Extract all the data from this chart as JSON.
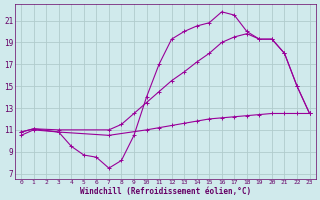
{
  "background_color": "#d0eaec",
  "grid_color": "#b0cccc",
  "line_color": "#990099",
  "xlabel": "Windchill (Refroidissement éolien,°C)",
  "xlabel_color": "#660066",
  "tick_color": "#660066",
  "xlim": [
    -0.5,
    23.5
  ],
  "ylim": [
    6.5,
    22.5
  ],
  "yticks": [
    7,
    9,
    11,
    13,
    15,
    17,
    19,
    21
  ],
  "xticks": [
    0,
    1,
    2,
    3,
    4,
    5,
    6,
    7,
    8,
    9,
    10,
    11,
    12,
    13,
    14,
    15,
    16,
    17,
    18,
    19,
    20,
    21,
    22,
    23
  ],
  "curve1_x": [
    0,
    1,
    3,
    4,
    5,
    6,
    7,
    8,
    9,
    10,
    11,
    12,
    13,
    14,
    15,
    16,
    17,
    18,
    19,
    20,
    21,
    22,
    23
  ],
  "curve1_y": [
    10.8,
    11.1,
    10.8,
    9.5,
    8.7,
    8.5,
    7.5,
    8.2,
    10.5,
    14.0,
    17.0,
    19.3,
    20.0,
    20.5,
    20.8,
    21.8,
    21.5,
    20.0,
    19.3,
    19.3,
    18.0,
    15.0,
    12.5
  ],
  "curve2_x": [
    0,
    1,
    3,
    7,
    8,
    9,
    10,
    11,
    12,
    13,
    14,
    15,
    16,
    17,
    18,
    19,
    20,
    21,
    22,
    23
  ],
  "curve2_y": [
    10.8,
    11.1,
    11.0,
    11.0,
    11.5,
    12.5,
    13.5,
    14.5,
    15.5,
    16.3,
    17.2,
    18.0,
    19.0,
    19.5,
    19.8,
    19.3,
    19.3,
    18.0,
    15.0,
    12.5
  ],
  "curve3_x": [
    0,
    1,
    3,
    7,
    10,
    11,
    12,
    13,
    14,
    15,
    16,
    17,
    18,
    19,
    20,
    21,
    22,
    23
  ],
  "curve3_y": [
    10.5,
    11.0,
    10.8,
    10.5,
    11.0,
    11.2,
    11.4,
    11.6,
    11.8,
    12.0,
    12.1,
    12.2,
    12.3,
    12.4,
    12.5,
    12.5,
    12.5,
    12.5
  ]
}
